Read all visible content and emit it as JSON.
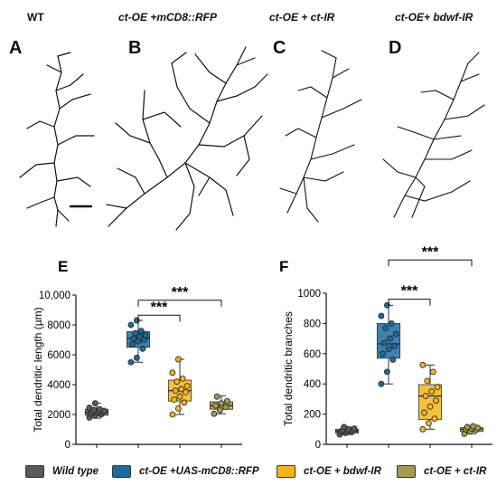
{
  "panels": {
    "top": [
      {
        "letter": "A",
        "title": "WT"
      },
      {
        "letter": "B",
        "title": "ct-OE +mCD8::RFP"
      },
      {
        "letter": "C",
        "title": "ct-OE + ct-IR"
      },
      {
        "letter": "D",
        "title": "ct-OE+ bdwf-IR"
      }
    ]
  },
  "chart_data": [
    {
      "type": "box",
      "panel": "E",
      "ylabel": "Total dendritic length (µm)",
      "ylim": [
        0,
        10000
      ],
      "yticks": [
        0,
        2000,
        4000,
        6000,
        8000,
        10000
      ],
      "ytick_labels": [
        "0",
        "2000",
        "4000",
        "6000",
        "8000",
        "10,000"
      ],
      "groups": [
        {
          "name": "Wild type",
          "color": "#5a5a5a",
          "q1": 1950,
          "median": 2150,
          "q3": 2350,
          "min": 1750,
          "max": 2750,
          "points": [
            1800,
            1950,
            2000,
            2050,
            2100,
            2150,
            2150,
            2200,
            2250,
            2300,
            2350,
            2450,
            2750
          ]
        },
        {
          "name": "ct-OE +UAS-mCD8::RFP",
          "color": "#1d6b9c",
          "q1": 6500,
          "median": 7100,
          "q3": 7550,
          "min": 5500,
          "max": 8300,
          "points": [
            5500,
            5800,
            6400,
            6700,
            6900,
            7000,
            7100,
            7200,
            7300,
            7450,
            7600,
            8000,
            8300
          ]
        },
        {
          "name": "ct-OE + bdwf-IR",
          "color": "#f2b51e",
          "q1": 2900,
          "median": 3600,
          "q3": 4300,
          "min": 2000,
          "max": 5700,
          "points": [
            2000,
            2400,
            2800,
            3000,
            3200,
            3500,
            3600,
            3700,
            3900,
            4200,
            4400,
            4800,
            5700
          ]
        },
        {
          "name": "ct-OE + ct-IR",
          "color": "#a39b4e",
          "q1": 2350,
          "median": 2600,
          "q3": 2850,
          "min": 2050,
          "max": 3250,
          "points": [
            2050,
            2300,
            2500,
            2600,
            2750,
            2900,
            3200
          ]
        }
      ],
      "significance": [
        {
          "from": 1,
          "to": 2,
          "label": "***",
          "level": 8650
        },
        {
          "from": 1,
          "to": 3,
          "label": "***",
          "level": 9650
        }
      ]
    },
    {
      "type": "box",
      "panel": "F",
      "ylabel": "Total dendritic branches",
      "ylim": [
        0,
        1000
      ],
      "yticks": [
        0,
        200,
        400,
        600,
        800,
        1000
      ],
      "ytick_labels": [
        "0",
        "200",
        "400",
        "600",
        "800",
        "1000"
      ],
      "groups": [
        {
          "name": "Wild type",
          "color": "#5a5a5a",
          "q1": 75,
          "median": 88,
          "q3": 100,
          "min": 65,
          "max": 115,
          "points": [
            65,
            75,
            80,
            85,
            88,
            90,
            95,
            100,
            105,
            115
          ]
        },
        {
          "name": "ct-OE +UAS-mCD8::RFP",
          "color": "#1d6b9c",
          "q1": 570,
          "median": 665,
          "q3": 800,
          "min": 400,
          "max": 920,
          "points": [
            400,
            480,
            560,
            600,
            630,
            650,
            670,
            700,
            730,
            770,
            800,
            850,
            920
          ]
        },
        {
          "name": "ct-OE + bdwf-IR",
          "color": "#f2b51e",
          "q1": 165,
          "median": 320,
          "q3": 395,
          "min": 100,
          "max": 525,
          "points": [
            100,
            140,
            170,
            210,
            250,
            290,
            320,
            350,
            380,
            420,
            480,
            525
          ]
        },
        {
          "name": "ct-OE + ct-IR",
          "color": "#a39b4e",
          "q1": 85,
          "median": 100,
          "q3": 110,
          "min": 70,
          "max": 120,
          "points": [
            70,
            85,
            95,
            100,
            105,
            110,
            115,
            120
          ]
        }
      ],
      "significance": [
        {
          "from": 1,
          "to": 2,
          "label": "***",
          "level": 960
        },
        {
          "from": 1,
          "to": 3,
          "label": "***",
          "level": 1220
        }
      ]
    }
  ],
  "legend": {
    "items": [
      {
        "label": "Wild type",
        "color": "#5a5a5a"
      },
      {
        "label": "ct-OE +UAS-mCD8::RFP",
        "color": "#1d6b9c"
      },
      {
        "label": "ct-OE + bdwf-IR",
        "color": "#f2b51e"
      },
      {
        "label": "ct-OE + ct-IR",
        "color": "#a39b4e"
      }
    ]
  }
}
